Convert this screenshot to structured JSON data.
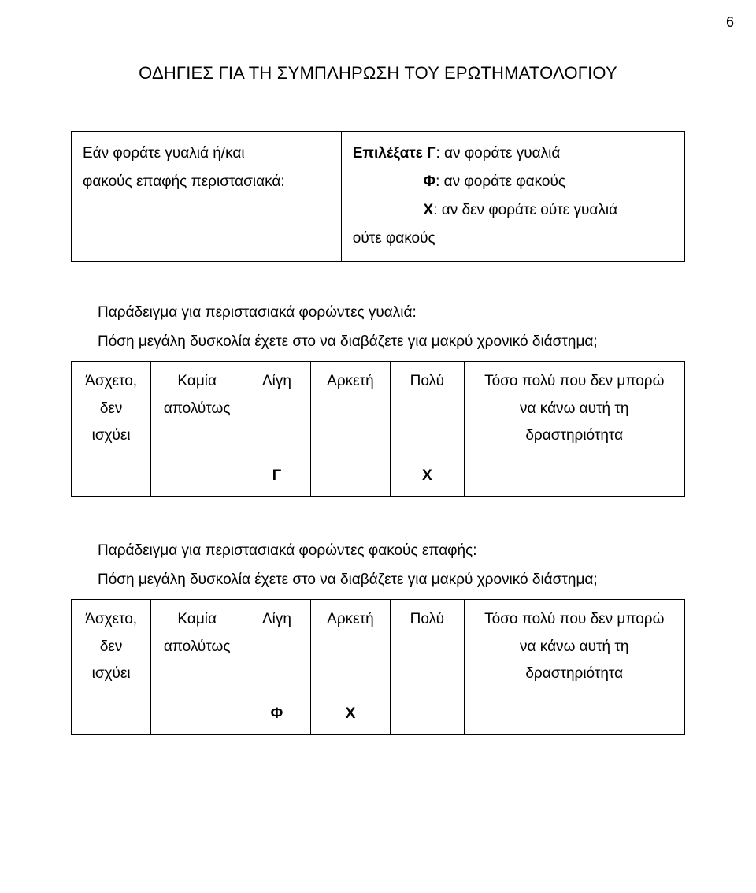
{
  "page": {
    "number": "6"
  },
  "title": "ΟΔΗΓΙΕΣ ΓΙΑ ΤΗ ΣΥΜΠΛΗΡΩΣΗ ΤΟΥ ΕΡΩΤΗΜΑΤΟΛΟΓΙΟΥ",
  "instr": {
    "left_l1": "Εάν   φοράτε   γυαλιά   ή/και",
    "left_l2": "φακούς επαφής περιστασιακά:",
    "right": {
      "sel_label": "Επιλέξατε Γ",
      "sel_rest": ": αν φοράτε γυαλιά",
      "f_label": "Φ",
      "f_rest": ": αν φοράτε φακούς",
      "x_label": "Χ",
      "x_rest": ": αν δεν φοράτε ούτε γυαλιά",
      "last": "ούτε φακούς"
    }
  },
  "example1": {
    "lead1": "Παράδειγμα για περιστασιακά φορώντες γυαλιά:",
    "lead2": "Πόση μεγάλη δυσκολία έχετε στο να διαβάζετε για μακρύ χρονικό διάστημα;",
    "headers": {
      "c0a": "Άσχετο,",
      "c0b": "δεν",
      "c0c": "ισχύει",
      "c1a": "Καμία",
      "c1b": "απολύτως",
      "c2": "Λίγη",
      "c3": "Αρκετή",
      "c4": "Πολύ",
      "c5a": "Τόσο πολύ που δεν μπορώ",
      "c5b": "να κάνω αυτή τη",
      "c5c": "δραστηριότητα"
    },
    "marks": {
      "c2": "Γ",
      "c4": "Χ"
    }
  },
  "example2": {
    "lead1": "Παράδειγμα για περιστασιακά φορώντες φακούς επαφής:",
    "lead2": "Πόση μεγάλη δυσκολία έχετε στο να διαβάζετε για μακρύ χρονικό διάστημα;",
    "headers": {
      "c0a": "Άσχετο,",
      "c0b": "δεν",
      "c0c": "ισχύει",
      "c1a": "Καμία",
      "c1b": "απολύτως",
      "c2": "Λίγη",
      "c3": "Αρκετή",
      "c4": "Πολύ",
      "c5a": "Τόσο πολύ που δεν μπορώ",
      "c5b": "να κάνω αυτή τη",
      "c5c": "δραστηριότητα"
    },
    "marks": {
      "c2": "Φ",
      "c3": "Χ"
    }
  }
}
